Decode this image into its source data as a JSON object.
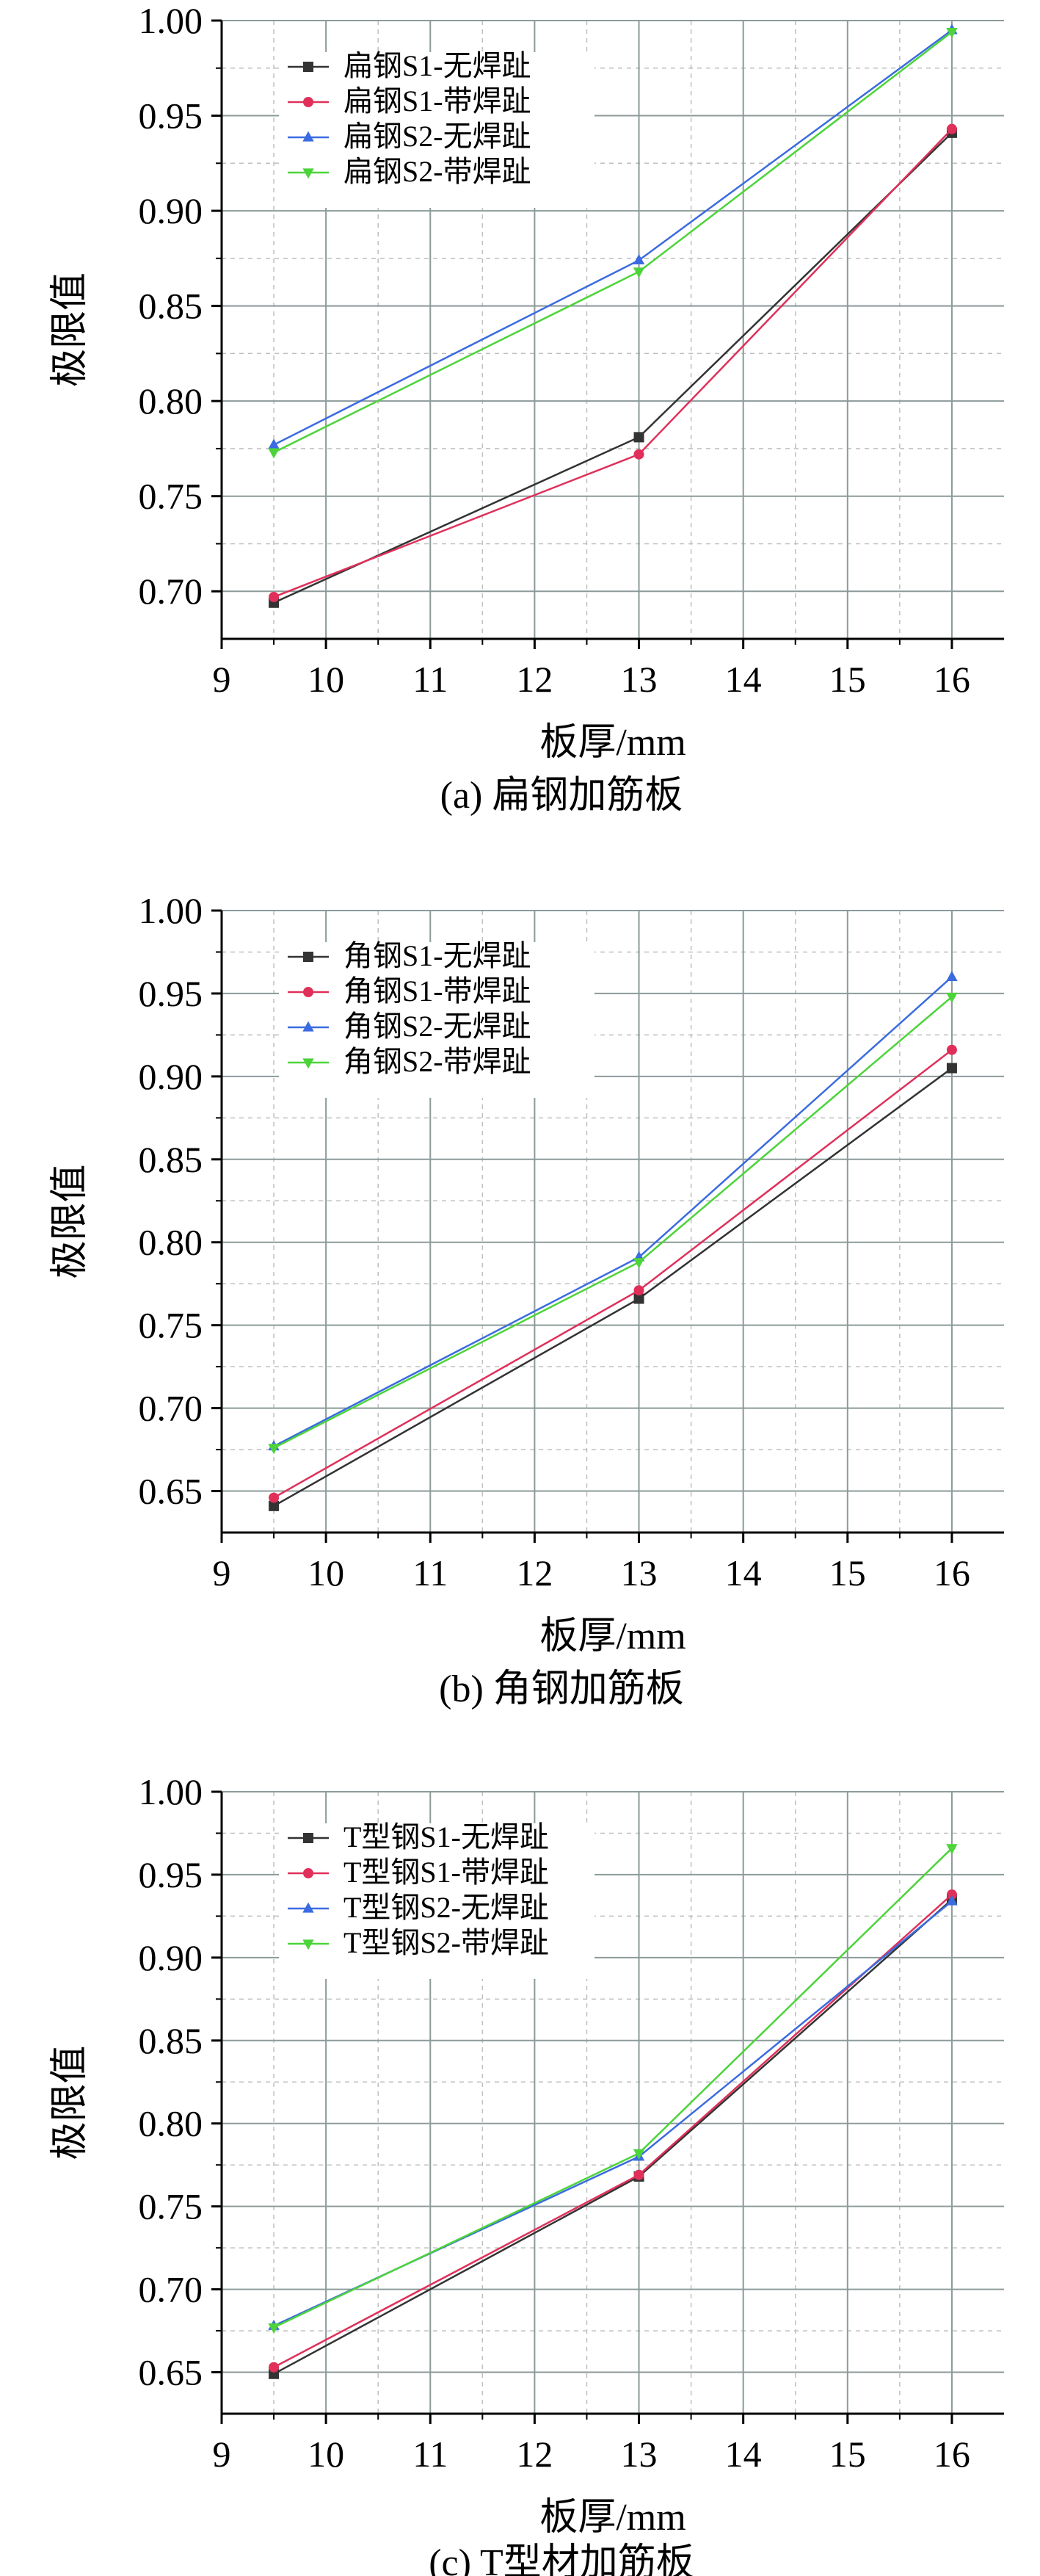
{
  "chart_data": [
    {
      "type": "line",
      "caption": "(a) 扁钢加筋板",
      "xlabel": "板厚/mm",
      "ylabel": "极限值",
      "xlim": [
        9,
        16.5
      ],
      "ylim": [
        0.675,
        1.0
      ],
      "xticks": [
        9,
        10,
        11,
        12,
        13,
        14,
        15,
        16
      ],
      "yticks": [
        0.7,
        0.75,
        0.8,
        0.85,
        0.9,
        0.95,
        1.0
      ],
      "x": [
        9.5,
        13,
        16
      ],
      "grid": true,
      "legend_position": "top-left",
      "series": [
        {
          "name": "扁钢S1-无焊趾",
          "color": "#333333",
          "marker": "square",
          "values": [
            0.694,
            0.781,
            0.941
          ]
        },
        {
          "name": "扁钢S1-带焊趾",
          "color": "#e0305a",
          "marker": "circle",
          "values": [
            0.697,
            0.772,
            0.943
          ]
        },
        {
          "name": "扁钢S2-无焊趾",
          "color": "#3b6be0",
          "marker": "triangle-up",
          "values": [
            0.777,
            0.874,
            0.995
          ]
        },
        {
          "name": "扁钢S2-带焊趾",
          "color": "#4cd43a",
          "marker": "triangle-down",
          "values": [
            0.773,
            0.868,
            0.994
          ]
        }
      ]
    },
    {
      "type": "line",
      "caption": "(b) 角钢加筋板",
      "xlabel": "板厚/mm",
      "ylabel": "极限值",
      "xlim": [
        9,
        16.5
      ],
      "ylim": [
        0.625,
        1.0
      ],
      "xticks": [
        9,
        10,
        11,
        12,
        13,
        14,
        15,
        16
      ],
      "yticks": [
        0.65,
        0.7,
        0.75,
        0.8,
        0.85,
        0.9,
        0.95,
        1.0
      ],
      "x": [
        9.5,
        13,
        16
      ],
      "grid": true,
      "legend_position": "top-left",
      "series": [
        {
          "name": "角钢S1-无焊趾",
          "color": "#333333",
          "marker": "square",
          "values": [
            0.641,
            0.766,
            0.905
          ]
        },
        {
          "name": "角钢S1-带焊趾",
          "color": "#e0305a",
          "marker": "circle",
          "values": [
            0.646,
            0.771,
            0.916
          ]
        },
        {
          "name": "角钢S2-无焊趾",
          "color": "#3b6be0",
          "marker": "triangle-up",
          "values": [
            0.677,
            0.791,
            0.96
          ]
        },
        {
          "name": "角钢S2-带焊趾",
          "color": "#4cd43a",
          "marker": "triangle-down",
          "values": [
            0.676,
            0.788,
            0.948
          ]
        }
      ]
    },
    {
      "type": "line",
      "caption": "(c) T型材加筋板",
      "xlabel": "板厚/mm",
      "ylabel": "极限值",
      "xlim": [
        9,
        16.5
      ],
      "ylim": [
        0.625,
        1.0
      ],
      "xticks": [
        9,
        10,
        11,
        12,
        13,
        14,
        15,
        16
      ],
      "yticks": [
        0.65,
        0.7,
        0.75,
        0.8,
        0.85,
        0.9,
        0.95,
        1.0
      ],
      "x": [
        9.5,
        13,
        16
      ],
      "grid": true,
      "legend_position": "top-left",
      "series": [
        {
          "name": "T型钢S1-无焊趾",
          "color": "#333333",
          "marker": "square",
          "values": [
            0.649,
            0.768,
            0.935
          ]
        },
        {
          "name": "T型钢S1-带焊趾",
          "color": "#e0305a",
          "marker": "circle",
          "values": [
            0.653,
            0.769,
            0.938
          ]
        },
        {
          "name": "T型钢S2-无焊趾",
          "color": "#3b6be0",
          "marker": "triangle-up",
          "values": [
            0.678,
            0.78,
            0.934
          ]
        },
        {
          "name": "T型钢S2-带焊趾",
          "color": "#4cd43a",
          "marker": "triangle-down",
          "values": [
            0.677,
            0.782,
            0.966
          ]
        }
      ]
    }
  ]
}
